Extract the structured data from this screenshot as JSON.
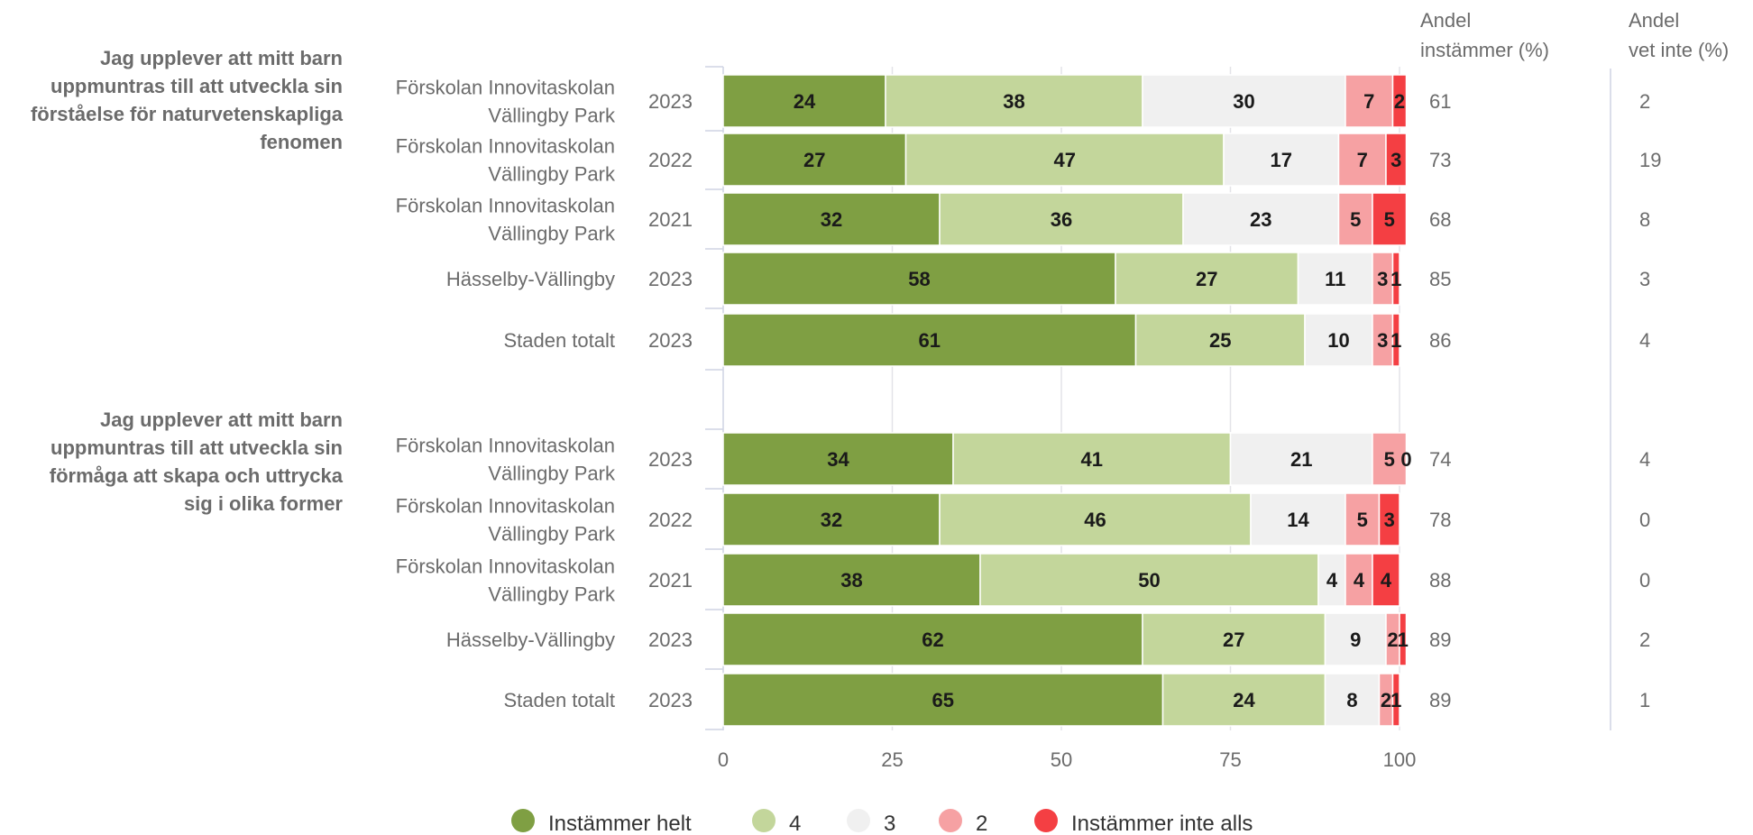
{
  "chart_data": {
    "type": "bar",
    "orientation": "horizontal",
    "stacked": true,
    "xlim": [
      0,
      100
    ],
    "xticks": [
      0,
      25,
      50,
      75,
      100
    ],
    "grid": true,
    "legend_position": "bottom",
    "col_headers": {
      "agree_line1": "Andel",
      "agree_line2": "instämmer (%)",
      "dontknow_line1": "Andel",
      "dontknow_line2": "vet inte (%)"
    },
    "series": [
      {
        "name": "Instämmer helt",
        "color": "#7f9f43"
      },
      {
        "name": "4",
        "color": "#c3d69b"
      },
      {
        "name": "3",
        "color": "#f0f0f0"
      },
      {
        "name": "2",
        "color": "#f6a1a3"
      },
      {
        "name": "Instämmer inte alls",
        "color": "#f43f43"
      }
    ],
    "groups": [
      {
        "question_lines": [
          "Jag upplever att mitt barn",
          "uppmuntras till att utveckla sin",
          "förståelse för naturvetenskapliga",
          "fenomen"
        ],
        "rows": [
          {
            "label_lines": [
              "Förskolan Innovitaskolan",
              "Vällingby Park"
            ],
            "year": "2023",
            "values": [
              24,
              38,
              30,
              7,
              2
            ],
            "agree": "61",
            "dont_know": "2"
          },
          {
            "label_lines": [
              "Förskolan Innovitaskolan",
              "Vällingby Park"
            ],
            "year": "2022",
            "values": [
              27,
              47,
              17,
              7,
              3
            ],
            "agree": "73",
            "dont_know": "19"
          },
          {
            "label_lines": [
              "Förskolan Innovitaskolan",
              "Vällingby Park"
            ],
            "year": "2021",
            "values": [
              32,
              36,
              23,
              5,
              5
            ],
            "agree": "68",
            "dont_know": "8"
          },
          {
            "label_lines": [
              "Hässelby-Vällingby"
            ],
            "year": "2023",
            "values": [
              58,
              27,
              11,
              3,
              1
            ],
            "agree": "85",
            "dont_know": "3"
          },
          {
            "label_lines": [
              "Staden totalt"
            ],
            "year": "2023",
            "values": [
              61,
              25,
              10,
              3,
              1
            ],
            "agree": "86",
            "dont_know": "4"
          }
        ]
      },
      {
        "question_lines": [
          "Jag upplever att mitt barn",
          "uppmuntras till att utveckla sin",
          "förmåga att skapa och uttrycka",
          "sig i olika former"
        ],
        "rows": [
          {
            "label_lines": [
              "Förskolan Innovitaskolan",
              "Vällingby Park"
            ],
            "year": "2023",
            "values": [
              34,
              41,
              21,
              5,
              0
            ],
            "agree": "74",
            "dont_know": "4"
          },
          {
            "label_lines": [
              "Förskolan Innovitaskolan",
              "Vällingby Park"
            ],
            "year": "2022",
            "values": [
              32,
              46,
              14,
              5,
              3
            ],
            "agree": "78",
            "dont_know": "0"
          },
          {
            "label_lines": [
              "Förskolan Innovitaskolan",
              "Vällingby Park"
            ],
            "year": "2021",
            "values": [
              38,
              50,
              4,
              4,
              4
            ],
            "agree": "88",
            "dont_know": "0"
          },
          {
            "label_lines": [
              "Hässelby-Vällingby"
            ],
            "year": "2023",
            "values": [
              62,
              27,
              9,
              2,
              1
            ],
            "agree": "89",
            "dont_know": "2"
          },
          {
            "label_lines": [
              "Staden totalt"
            ],
            "year": "2023",
            "values": [
              65,
              24,
              8,
              2,
              1
            ],
            "agree": "89",
            "dont_know": "1"
          }
        ]
      }
    ]
  }
}
